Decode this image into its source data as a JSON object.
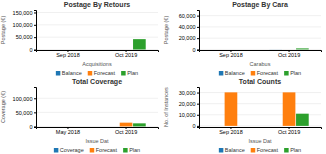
{
  "chart_data": [
    {
      "type": "bar",
      "title": "Postage By Retours",
      "xlabel": "Acquisitions",
      "ylabel": "Postage (€)",
      "categories": [
        "Sep 2018",
        "Oct 2019"
      ],
      "series": [
        {
          "name": "Balance",
          "values": [
            0.0,
            28.0
          ]
        },
        {
          "name": "Forecast",
          "values": [
            0.14,
            28.14
          ]
        },
        {
          "name": "Plan",
          "values": [
            0.0,
            42000.0
          ]
        }
      ],
      "ylim": [
        -2000,
        160000
      ],
      "yticks": [
        0,
        {
          "value": 50000,
          "label": "50,000"
        },
        {
          "value": 100000,
          "label": "100,000"
        },
        {
          "value": 150000,
          "label": "150,000"
        }
      ],
      "grid": true,
      "legend": "bottom"
    },
    {
      "type": "bar",
      "title": "Postage By Cara",
      "xlabel": "Carabus",
      "ylabel": "Postage (€)",
      "categories": [
        "Sep 2018",
        "Oct 2019"
      ],
      "series": [
        {
          "name": "Balance",
          "values": [
            0.0,
            108.0
          ]
        },
        {
          "name": "Forecast",
          "values": [
            0.02,
            18.8
          ]
        },
        {
          "name": "Plan",
          "values": [
            0.0,
            1865.0
          ]
        }
      ],
      "ylim": [
        -1000,
        70000
      ],
      "yticks": [
        0,
        {
          "value": 20000,
          "label": "20,000"
        },
        {
          "value": 40000,
          "label": "40,000"
        },
        {
          "value": 60000,
          "label": "60,000"
        }
      ],
      "grid": true,
      "legend": "bottom"
    },
    {
      "type": "bar",
      "title": "Total Coverage",
      "xlabel": "Issue Dat",
      "ylabel": "Coverage (€)",
      "categories": [
        "May 2018",
        "Oct 2019"
      ],
      "series": [
        {
          "name": "Coverage",
          "values": [
            0.0,
            1.58
          ]
        },
        {
          "name": "Forecast",
          "values": [
            50.0,
            13401.0
          ]
        },
        {
          "name": "Plan",
          "values": [
            0.0,
            10980.0
          ]
        }
      ],
      "ylim": [
        -2000,
        140000
      ],
      "yticks": [
        0,
        {
          "value": 50000,
          "label": "50,000"
        },
        {
          "value": 100000,
          "label": "100,000"
        }
      ],
      "grid": true,
      "legend": "bottom"
    },
    {
      "type": "bar",
      "title": "Total Counts",
      "xlabel": "Issue Dat",
      "ylabel": "No. of Instances",
      "categories": [
        "Sep 2018",
        "Oct 2019"
      ],
      "series": [
        {
          "name": "Balance",
          "values": [
            0.0,
            1.52
          ]
        },
        {
          "name": "Forecast",
          "values": [
            30178.0,
            30178.0
          ]
        },
        {
          "name": "Plan",
          "values": [
            0.0,
            10980.0
          ]
        }
      ],
      "ylim": [
        -1000,
        35000
      ],
      "yticks": [
        0,
        {
          "value": 10000,
          "label": "10,000"
        },
        {
          "value": 20000,
          "label": "20,000"
        },
        {
          "value": 30000,
          "label": "30,000"
        }
      ],
      "grid": true,
      "legend": "bottom"
    }
  ]
}
